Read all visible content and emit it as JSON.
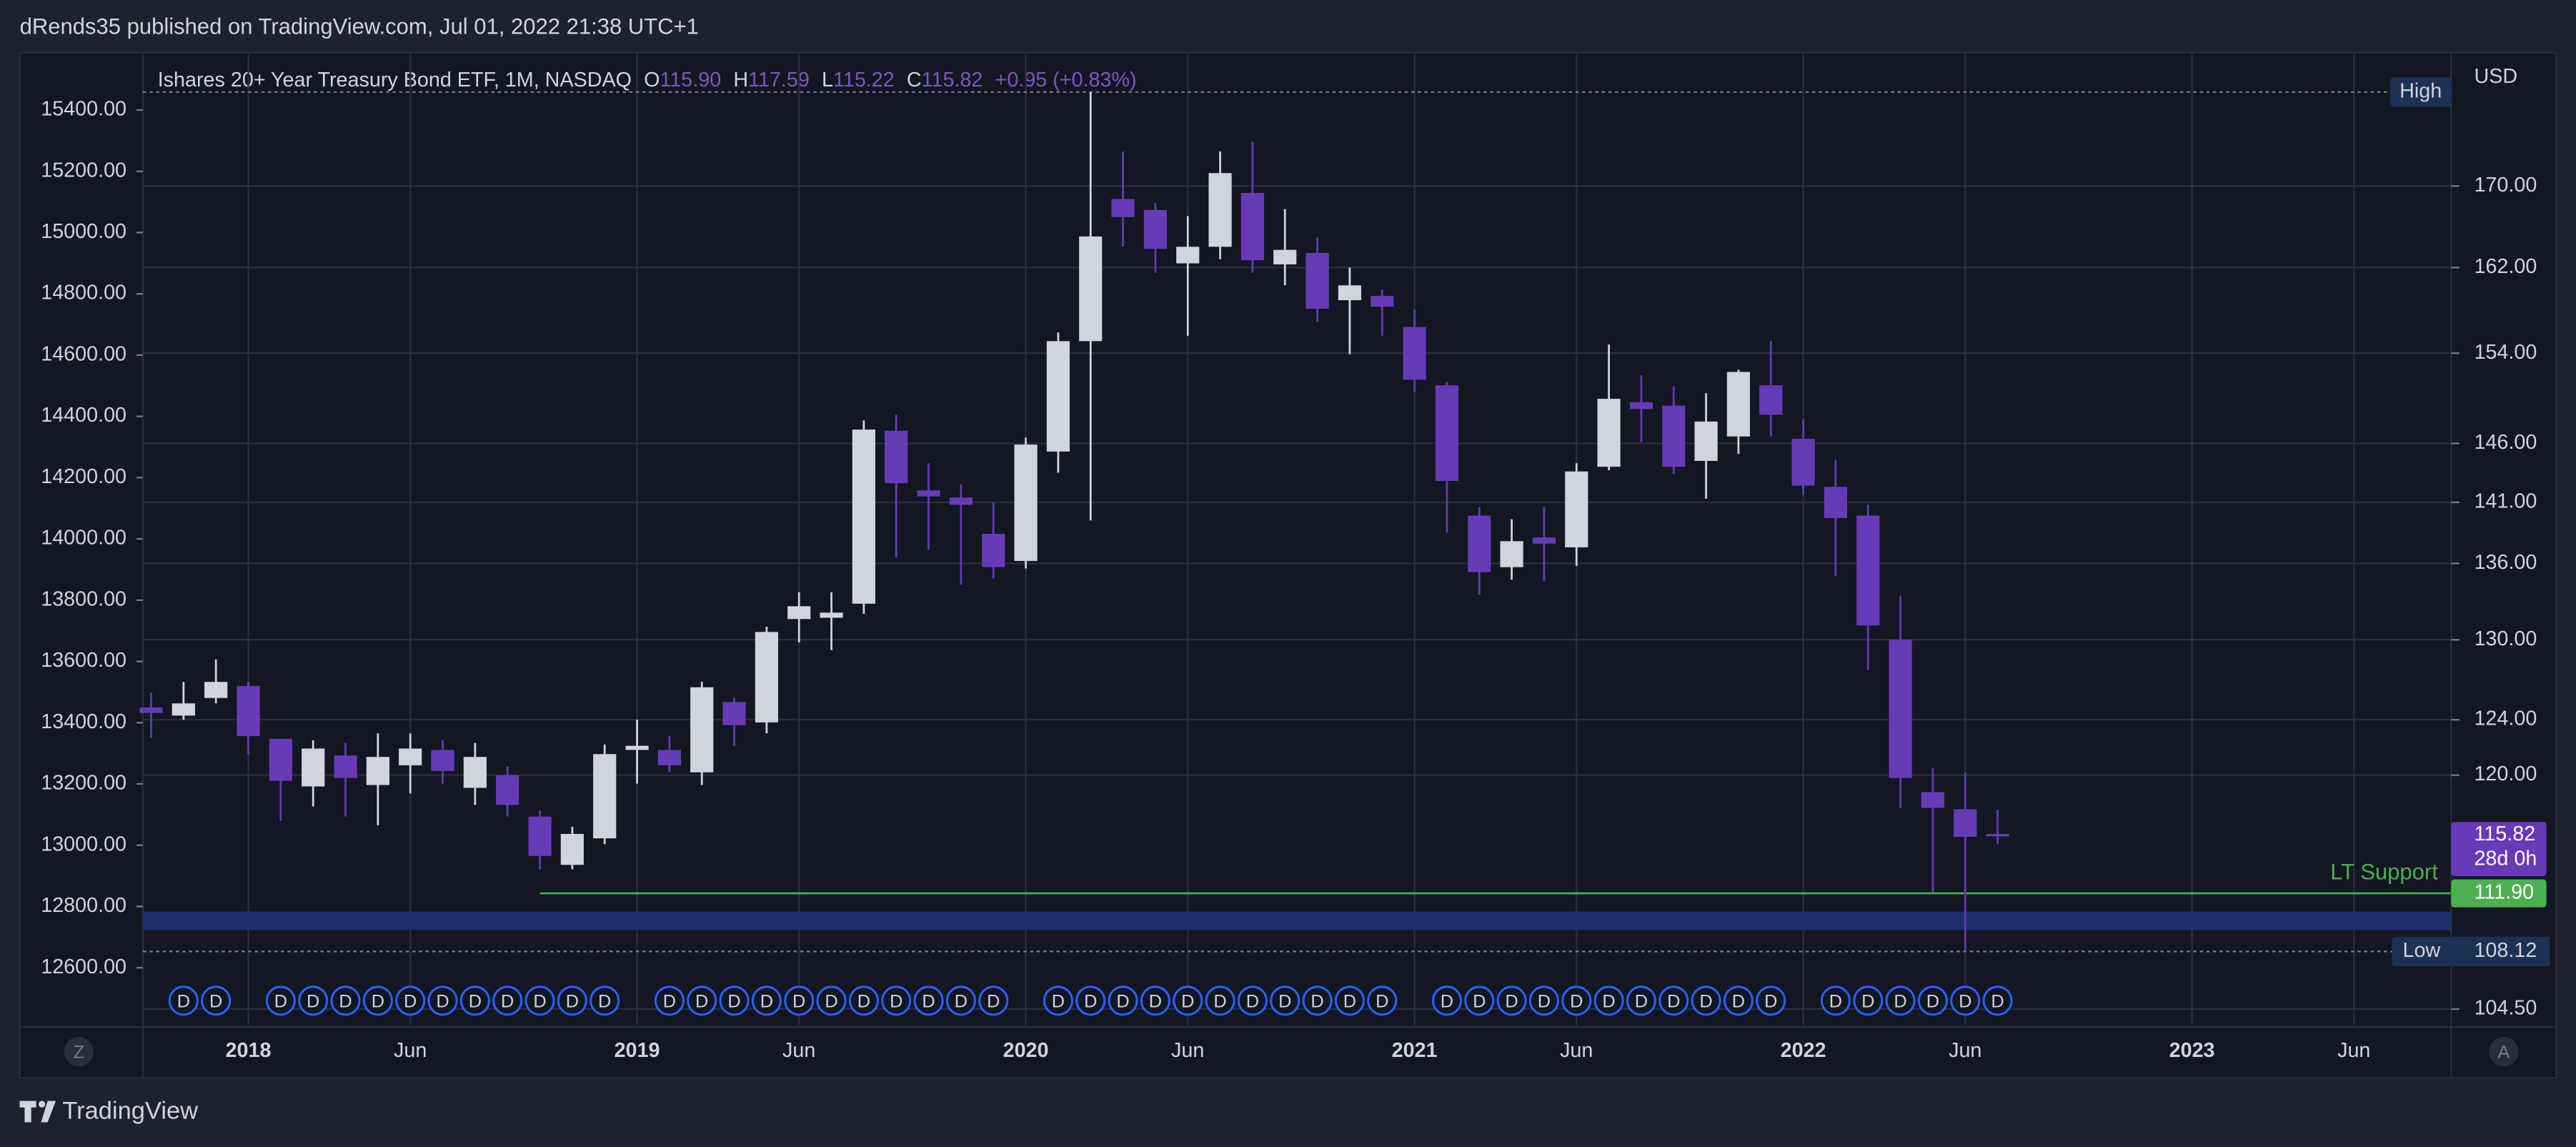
{
  "header": {
    "text": "dRends35 published on TradingView.com, Jul 01, 2022 21:38 UTC+1"
  },
  "footer": {
    "brand": "TradingView",
    "left_button": "Z",
    "right_button": "A"
  },
  "chart_data": {
    "type": "candlestick",
    "title": "Ishares 20+ Year Treasury Bond ETF, 1M, NASDAQ",
    "ohlc_legend": {
      "labels": [
        "O",
        "H",
        "L",
        "C"
      ],
      "values": [
        115.9,
        117.59,
        115.22,
        115.82
      ],
      "value_labels": [
        "115.90",
        "117.59",
        "115.22",
        "115.82"
      ],
      "change": "+0.95 (+0.83%)"
    },
    "x": [
      "2017-10",
      "2017-11",
      "2017-12",
      "2018-01",
      "2018-02",
      "2018-03",
      "2018-04",
      "2018-05",
      "2018-06",
      "2018-07",
      "2018-08",
      "2018-09",
      "2018-10",
      "2018-11",
      "2018-12",
      "2019-01",
      "2019-02",
      "2019-03",
      "2019-04",
      "2019-05",
      "2019-06",
      "2019-07",
      "2019-08",
      "2019-09",
      "2019-10",
      "2019-11",
      "2019-12",
      "2020-01",
      "2020-02",
      "2020-03",
      "2020-04",
      "2020-05",
      "2020-06",
      "2020-07",
      "2020-08",
      "2020-09",
      "2020-10",
      "2020-11",
      "2020-12",
      "2021-01",
      "2021-02",
      "2021-03",
      "2021-04",
      "2021-05",
      "2021-06",
      "2021-07",
      "2021-08",
      "2021-09",
      "2021-10",
      "2021-11",
      "2021-12",
      "2022-01",
      "2022-02",
      "2022-03",
      "2022-04",
      "2022-05",
      "2022-06",
      "2022-07"
    ],
    "open": [
      124.9,
      124.3,
      125.6,
      126.5,
      122.6,
      119.2,
      121.4,
      119.3,
      120.7,
      121.8,
      119.1,
      120.0,
      117.1,
      113.8,
      115.6,
      121.8,
      121.8,
      120.2,
      125.3,
      123.8,
      131.6,
      131.7,
      132.8,
      147.1,
      142.0,
      141.4,
      138.4,
      136.2,
      145.3,
      155.1,
      168.7,
      167.6,
      162.4,
      164.0,
      169.3,
      162.3,
      163.4,
      158.9,
      159.3,
      156.4,
      151.1,
      139.9,
      135.7,
      138.1,
      137.3,
      144.0,
      149.6,
      149.3,
      144.5,
      146.6,
      151.1,
      146.4,
      142.3,
      139.9,
      130.0,
      118.8,
      117.6,
      115.9
    ],
    "high": [
      126.0,
      126.8,
      128.5,
      126.8,
      122.6,
      122.5,
      122.3,
      123.0,
      123.0,
      122.5,
      122.3,
      120.6,
      117.5,
      116.4,
      122.2,
      124.0,
      122.8,
      126.8,
      125.6,
      131.0,
      133.7,
      133.7,
      148.0,
      148.5,
      144.3,
      142.5,
      141.0,
      146.5,
      155.9,
      179.7,
      173.5,
      168.3,
      167.0,
      173.5,
      174.5,
      167.7,
      164.9,
      162.0,
      159.9,
      158.0,
      151.4,
      140.6,
      139.6,
      140.6,
      144.3,
      154.8,
      152.0,
      151.0,
      150.4,
      152.5,
      155.1,
      148.1,
      144.6,
      140.8,
      133.4,
      120.5,
      120.2,
      117.59
    ],
    "low": [
      122.7,
      124.0,
      125.2,
      121.5,
      116.8,
      117.8,
      117.1,
      116.5,
      118.7,
      119.4,
      117.9,
      117.1,
      113.5,
      113.5,
      115.2,
      119.4,
      120.2,
      119.3,
      122.1,
      123.0,
      129.8,
      129.2,
      132.0,
      136.5,
      137.1,
      134.3,
      134.8,
      135.6,
      143.5,
      139.5,
      164.0,
      161.5,
      155.6,
      162.8,
      161.5,
      160.3,
      156.9,
      153.9,
      155.6,
      150.5,
      138.5,
      133.5,
      134.7,
      134.6,
      135.8,
      143.7,
      146.1,
      143.4,
      141.3,
      145.1,
      146.6,
      141.6,
      135.0,
      127.7,
      117.7,
      112.0,
      108.12,
      115.22
    ],
    "close": [
      124.5,
      125.2,
      126.8,
      122.8,
      119.6,
      121.9,
      119.8,
      121.3,
      121.9,
      120.3,
      121.3,
      117.9,
      114.4,
      115.9,
      121.5,
      122.1,
      120.7,
      126.4,
      123.6,
      130.6,
      132.6,
      132.1,
      147.2,
      142.6,
      141.5,
      140.8,
      135.7,
      145.9,
      155.1,
      165.0,
      166.9,
      163.8,
      164.0,
      171.3,
      162.7,
      163.7,
      158.1,
      160.3,
      158.3,
      151.6,
      142.8,
      135.3,
      137.8,
      137.6,
      143.6,
      149.9,
      149.0,
      144.0,
      147.9,
      152.3,
      148.5,
      142.4,
      139.7,
      131.1,
      119.8,
      117.7,
      115.7,
      115.82
    ],
    "up_color": "#d1d4dc",
    "down_color": "#673ab7",
    "y_unit": "USD",
    "log_y": true,
    "ylim": [
      103.5,
      184.3
    ],
    "yticks": [
      {
        "value": 170,
        "label": "170.00"
      },
      {
        "value": 162,
        "label": "162.00"
      },
      {
        "value": 154,
        "label": "154.00"
      },
      {
        "value": 146,
        "label": "146.00"
      },
      {
        "value": 141,
        "label": "141.00"
      },
      {
        "value": 136,
        "label": "136.00"
      },
      {
        "value": 130,
        "label": "130.00"
      },
      {
        "value": 124,
        "label": "124.00"
      },
      {
        "value": 120,
        "label": "120.00"
      },
      {
        "value": 104.5,
        "label": "104.50"
      }
    ],
    "y2lim": [
      12412,
      15598
    ],
    "y2ticks": [
      {
        "value": 15400,
        "label": "15400.00"
      },
      {
        "value": 15200,
        "label": "15200.00"
      },
      {
        "value": 15000,
        "label": "15000.00"
      },
      {
        "value": 14800,
        "label": "14800.00"
      },
      {
        "value": 14600,
        "label": "14600.00"
      },
      {
        "value": 14400,
        "label": "14400.00"
      },
      {
        "value": 14200,
        "label": "14200.00"
      },
      {
        "value": 14000,
        "label": "14000.00"
      },
      {
        "value": 13800,
        "label": "13800.00"
      },
      {
        "value": 13600,
        "label": "13600.00"
      },
      {
        "value": 13400,
        "label": "13400.00"
      },
      {
        "value": 13200,
        "label": "13200.00"
      },
      {
        "value": 13000,
        "label": "13000.00"
      },
      {
        "value": 12800,
        "label": "12800.00"
      },
      {
        "value": 12600,
        "label": "12600.00"
      }
    ],
    "xlim": [
      "2017-10",
      "2023-09"
    ],
    "xticks": [
      {
        "value": "2018-01",
        "label": "2018"
      },
      {
        "value": "2018-06",
        "label": "Jun"
      },
      {
        "value": "2019-01",
        "label": "2019"
      },
      {
        "value": "2019-06",
        "label": "Jun"
      },
      {
        "value": "2020-01",
        "label": "2020"
      },
      {
        "value": "2020-06",
        "label": "Jun"
      },
      {
        "value": "2021-01",
        "label": "2021"
      },
      {
        "value": "2021-06",
        "label": "Jun"
      },
      {
        "value": "2022-01",
        "label": "2022"
      },
      {
        "value": "2022-06",
        "label": "Jun"
      },
      {
        "value": "2023-01",
        "label": "2023"
      },
      {
        "value": "2023-06",
        "label": "Jun"
      }
    ],
    "grid": true,
    "last_price": {
      "value": 115.82,
      "label": "115.82",
      "countdown": "28d 0h",
      "color": "#673ab7"
    },
    "support_line": {
      "name": "LT Support",
      "value": 111.9,
      "label": "111.90",
      "start": "2018-10",
      "color": "#4caf50"
    },
    "zone": {
      "from": 109.5,
      "to": 110.7,
      "color": "#1f2f6b"
    },
    "low_marker": {
      "name": "Low",
      "value": 108.12,
      "label": "108.12"
    },
    "high_marker": {
      "name": "High"
    },
    "dividends": {
      "marker": "D",
      "x": [
        "2017-11",
        "2017-12",
        "2018-02",
        "2018-03",
        "2018-04",
        "2018-05",
        "2018-06",
        "2018-07",
        "2018-08",
        "2018-09",
        "2018-10",
        "2018-11",
        "2018-12",
        "2019-02",
        "2019-03",
        "2019-04",
        "2019-05",
        "2019-06",
        "2019-07",
        "2019-08",
        "2019-09",
        "2019-10",
        "2019-11",
        "2019-12",
        "2020-02",
        "2020-03",
        "2020-04",
        "2020-05",
        "2020-06",
        "2020-07",
        "2020-08",
        "2020-09",
        "2020-10",
        "2020-11",
        "2020-12",
        "2021-02",
        "2021-03",
        "2021-04",
        "2021-05",
        "2021-06",
        "2021-07",
        "2021-08",
        "2021-09",
        "2021-10",
        "2021-11",
        "2021-12",
        "2022-02",
        "2022-03",
        "2022-04",
        "2022-05",
        "2022-06",
        "2022-07"
      ]
    }
  }
}
